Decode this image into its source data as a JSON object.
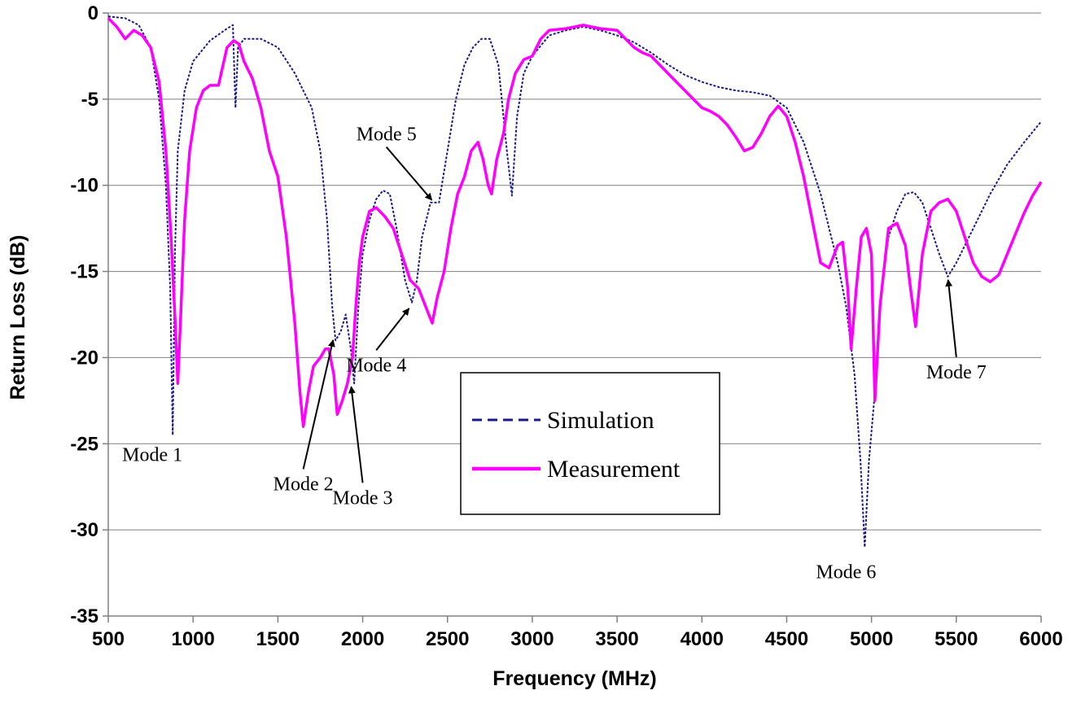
{
  "chart_data": {
    "type": "line",
    "title": "",
    "xlabel": "Frequency (MHz)",
    "ylabel": "Return Loss (dB)",
    "xlim": [
      500,
      6000
    ],
    "ylim": [
      -35,
      0
    ],
    "x_ticks": [
      500,
      1000,
      1500,
      2000,
      2500,
      3000,
      3500,
      4000,
      4500,
      5000,
      5500,
      6000
    ],
    "y_ticks": [
      0,
      -5,
      -10,
      -15,
      -20,
      -25,
      -30,
      -35
    ],
    "grid": "horizontal",
    "legend": {
      "placement": "center-bottom"
    },
    "series": [
      {
        "name": "Simulation",
        "style": "dashed",
        "color": "#1a1a8c",
        "points": [
          [
            500,
            -0.2
          ],
          [
            600,
            -0.3
          ],
          [
            680,
            -0.7
          ],
          [
            750,
            -2.0
          ],
          [
            800,
            -5.0
          ],
          [
            840,
            -10.0
          ],
          [
            865,
            -16.0
          ],
          [
            880,
            -24.5
          ],
          [
            893,
            -14.0
          ],
          [
            910,
            -8.0
          ],
          [
            950,
            -4.5
          ],
          [
            1000,
            -2.8
          ],
          [
            1100,
            -1.6
          ],
          [
            1200,
            -0.9
          ],
          [
            1235,
            -0.7
          ],
          [
            1250,
            -5.5
          ],
          [
            1265,
            -2.0
          ],
          [
            1300,
            -1.5
          ],
          [
            1400,
            -1.5
          ],
          [
            1500,
            -2.0
          ],
          [
            1600,
            -3.5
          ],
          [
            1700,
            -5.5
          ],
          [
            1750,
            -8.0
          ],
          [
            1790,
            -12.0
          ],
          [
            1820,
            -17.0
          ],
          [
            1840,
            -19.0
          ],
          [
            1870,
            -18.5
          ],
          [
            1900,
            -17.5
          ],
          [
            1930,
            -19.5
          ],
          [
            1950,
            -21.5
          ],
          [
            1975,
            -17.0
          ],
          [
            2000,
            -14.0
          ],
          [
            2040,
            -12.0
          ],
          [
            2080,
            -10.8
          ],
          [
            2120,
            -10.3
          ],
          [
            2160,
            -10.5
          ],
          [
            2200,
            -12.5
          ],
          [
            2250,
            -15.5
          ],
          [
            2290,
            -16.8
          ],
          [
            2320,
            -15.5
          ],
          [
            2350,
            -13.0
          ],
          [
            2400,
            -11.0
          ],
          [
            2450,
            -11.0
          ],
          [
            2500,
            -8.0
          ],
          [
            2550,
            -5.0
          ],
          [
            2600,
            -3.0
          ],
          [
            2650,
            -2.0
          ],
          [
            2700,
            -1.5
          ],
          [
            2750,
            -1.5
          ],
          [
            2800,
            -3.0
          ],
          [
            2850,
            -8.0
          ],
          [
            2880,
            -10.6
          ],
          [
            2910,
            -6.0
          ],
          [
            2950,
            -3.5
          ],
          [
            3000,
            -2.5
          ],
          [
            3100,
            -1.3
          ],
          [
            3200,
            -1.0
          ],
          [
            3300,
            -0.8
          ],
          [
            3400,
            -1.0
          ],
          [
            3500,
            -1.3
          ],
          [
            3600,
            -1.7
          ],
          [
            3700,
            -2.3
          ],
          [
            3800,
            -3.0
          ],
          [
            3900,
            -3.6
          ],
          [
            4000,
            -4.0
          ],
          [
            4100,
            -4.3
          ],
          [
            4200,
            -4.5
          ],
          [
            4300,
            -4.6
          ],
          [
            4400,
            -4.8
          ],
          [
            4500,
            -5.5
          ],
          [
            4600,
            -7.5
          ],
          [
            4700,
            -10.5
          ],
          [
            4800,
            -14.5
          ],
          [
            4850,
            -17.0
          ],
          [
            4900,
            -21.0
          ],
          [
            4935,
            -26.0
          ],
          [
            4960,
            -31.0
          ],
          [
            4985,
            -26.0
          ],
          [
            5020,
            -22.0
          ],
          [
            5060,
            -16.0
          ],
          [
            5100,
            -13.0
          ],
          [
            5150,
            -11.5
          ],
          [
            5200,
            -10.5
          ],
          [
            5250,
            -10.4
          ],
          [
            5300,
            -11.0
          ],
          [
            5350,
            -12.5
          ],
          [
            5400,
            -14.0
          ],
          [
            5450,
            -15.3
          ],
          [
            5500,
            -14.5
          ],
          [
            5600,
            -12.5
          ],
          [
            5700,
            -10.5
          ],
          [
            5800,
            -8.8
          ],
          [
            5900,
            -7.5
          ],
          [
            6000,
            -6.3
          ]
        ]
      },
      {
        "name": "Measurement",
        "style": "solid",
        "color": "#ff00ff",
        "points": [
          [
            500,
            -0.3
          ],
          [
            550,
            -0.8
          ],
          [
            600,
            -1.5
          ],
          [
            650,
            -1.0
          ],
          [
            700,
            -1.3
          ],
          [
            750,
            -2.0
          ],
          [
            800,
            -4.0
          ],
          [
            840,
            -8.0
          ],
          [
            870,
            -13.0
          ],
          [
            895,
            -18.0
          ],
          [
            910,
            -21.5
          ],
          [
            925,
            -18.0
          ],
          [
            950,
            -12.0
          ],
          [
            980,
            -8.0
          ],
          [
            1020,
            -5.5
          ],
          [
            1060,
            -4.5
          ],
          [
            1100,
            -4.2
          ],
          [
            1150,
            -4.2
          ],
          [
            1200,
            -2.0
          ],
          [
            1240,
            -1.6
          ],
          [
            1270,
            -1.8
          ],
          [
            1300,
            -2.8
          ],
          [
            1350,
            -3.8
          ],
          [
            1400,
            -5.5
          ],
          [
            1450,
            -8.0
          ],
          [
            1500,
            -9.5
          ],
          [
            1550,
            -13.0
          ],
          [
            1600,
            -18.0
          ],
          [
            1630,
            -22.0
          ],
          [
            1650,
            -24.0
          ],
          [
            1680,
            -22.0
          ],
          [
            1710,
            -20.5
          ],
          [
            1750,
            -20.0
          ],
          [
            1780,
            -19.5
          ],
          [
            1800,
            -19.5
          ],
          [
            1830,
            -21.0
          ],
          [
            1850,
            -23.3
          ],
          [
            1880,
            -22.5
          ],
          [
            1910,
            -21.5
          ],
          [
            1940,
            -20.0
          ],
          [
            1960,
            -17.0
          ],
          [
            1980,
            -14.5
          ],
          [
            2000,
            -13.0
          ],
          [
            2040,
            -11.5
          ],
          [
            2080,
            -11.3
          ],
          [
            2130,
            -11.8
          ],
          [
            2180,
            -12.5
          ],
          [
            2230,
            -14.0
          ],
          [
            2280,
            -15.5
          ],
          [
            2330,
            -16.0
          ],
          [
            2370,
            -17.0
          ],
          [
            2410,
            -18.0
          ],
          [
            2440,
            -16.5
          ],
          [
            2480,
            -15.0
          ],
          [
            2520,
            -12.5
          ],
          [
            2560,
            -10.5
          ],
          [
            2600,
            -9.5
          ],
          [
            2640,
            -8.0
          ],
          [
            2680,
            -7.5
          ],
          [
            2710,
            -8.5
          ],
          [
            2740,
            -10.0
          ],
          [
            2760,
            -10.5
          ],
          [
            2790,
            -8.5
          ],
          [
            2830,
            -7.0
          ],
          [
            2860,
            -5.0
          ],
          [
            2900,
            -3.5
          ],
          [
            2950,
            -2.7
          ],
          [
            3000,
            -2.5
          ],
          [
            3050,
            -1.5
          ],
          [
            3100,
            -1.0
          ],
          [
            3200,
            -0.9
          ],
          [
            3300,
            -0.7
          ],
          [
            3400,
            -0.9
          ],
          [
            3500,
            -1.0
          ],
          [
            3550,
            -1.5
          ],
          [
            3600,
            -2.0
          ],
          [
            3650,
            -2.3
          ],
          [
            3700,
            -2.5
          ],
          [
            3800,
            -3.5
          ],
          [
            3900,
            -4.5
          ],
          [
            4000,
            -5.5
          ],
          [
            4050,
            -5.7
          ],
          [
            4100,
            -6.0
          ],
          [
            4150,
            -6.5
          ],
          [
            4200,
            -7.2
          ],
          [
            4250,
            -8.0
          ],
          [
            4300,
            -7.8
          ],
          [
            4350,
            -7.0
          ],
          [
            4400,
            -6.0
          ],
          [
            4450,
            -5.4
          ],
          [
            4500,
            -6.0
          ],
          [
            4550,
            -7.5
          ],
          [
            4600,
            -9.5
          ],
          [
            4650,
            -12.0
          ],
          [
            4700,
            -14.5
          ],
          [
            4750,
            -14.8
          ],
          [
            4800,
            -13.5
          ],
          [
            4830,
            -13.3
          ],
          [
            4860,
            -16.0
          ],
          [
            4880,
            -19.5
          ],
          [
            4910,
            -16.0
          ],
          [
            4940,
            -13.0
          ],
          [
            4970,
            -12.5
          ],
          [
            5000,
            -14.0
          ],
          [
            5020,
            -22.5
          ],
          [
            5050,
            -17.0
          ],
          [
            5100,
            -12.5
          ],
          [
            5150,
            -12.2
          ],
          [
            5200,
            -13.5
          ],
          [
            5230,
            -16.0
          ],
          [
            5260,
            -18.2
          ],
          [
            5300,
            -14.0
          ],
          [
            5350,
            -11.5
          ],
          [
            5400,
            -11.0
          ],
          [
            5450,
            -10.8
          ],
          [
            5500,
            -11.5
          ],
          [
            5550,
            -13.0
          ],
          [
            5600,
            -14.5
          ],
          [
            5650,
            -15.3
          ],
          [
            5700,
            -15.6
          ],
          [
            5750,
            -15.2
          ],
          [
            5800,
            -14.0
          ],
          [
            5850,
            -12.8
          ],
          [
            5900,
            -11.6
          ],
          [
            5950,
            -10.6
          ],
          [
            6000,
            -9.8
          ]
        ]
      }
    ],
    "annotations": [
      {
        "label": "Mode 1",
        "point": [
          880,
          -24.5
        ],
        "text_at": [
          760,
          -26.0
        ],
        "arrow": false
      },
      {
        "label": "Mode 2",
        "point": [
          1830,
          -18.8
        ],
        "text_at": [
          1650,
          -27.7
        ],
        "arrow": true
      },
      {
        "label": "Mode 3",
        "point": [
          1930,
          -21.5
        ],
        "text_at": [
          2000,
          -28.5
        ],
        "arrow": true
      },
      {
        "label": "Mode 4",
        "point": [
          2285,
          -17.0
        ],
        "text_at": [
          2080,
          -20.8
        ],
        "arrow": true
      },
      {
        "label": "Mode 5",
        "point": [
          2420,
          -11.0
        ],
        "text_at": [
          2140,
          -7.4
        ],
        "arrow": true
      },
      {
        "label": "Mode 6",
        "point": [
          4960,
          -31.0
        ],
        "text_at": [
          4850,
          -32.8
        ],
        "arrow": false
      },
      {
        "label": "Mode 7",
        "point": [
          5450,
          -15.3
        ],
        "text_at": [
          5500,
          -21.2
        ],
        "arrow": true
      }
    ]
  }
}
